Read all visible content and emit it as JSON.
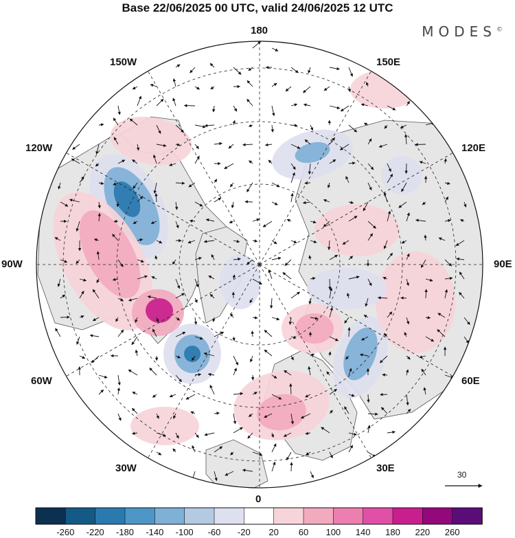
{
  "header": {
    "title": "Base 22/06/2025 00 UTC, valid 24/06/2025 12 UTC",
    "brand": "MODES",
    "brand_mark": "©"
  },
  "map": {
    "projection": "north-polar-stereographic",
    "ocean_color": "#ffffff",
    "land_color": "#e6e6e6",
    "coastline_color": "#555555",
    "grid_style": "dashed"
  },
  "longitude_labels": {
    "lon_180": "180",
    "lon_150E": "150E",
    "lon_120E": "120E",
    "lon_90E": "90E",
    "lon_60E": "60E",
    "lon_30E": "30E",
    "lon_0": "0",
    "lon_30W": "30W",
    "lon_60W": "60W",
    "lon_90W": "90W",
    "lon_120W": "120W",
    "lon_150W": "150W"
  },
  "reference_vector": {
    "label": "30"
  },
  "colorbar": {
    "ticks": [
      "-260",
      "-220",
      "-180",
      "-140",
      "-100",
      "-60",
      "-20",
      "20",
      "60",
      "100",
      "140",
      "180",
      "220",
      "260"
    ],
    "colors": [
      "#0c3050",
      "#145a87",
      "#2a7ab0",
      "#4c97c6",
      "#7fb0d6",
      "#b4cae2",
      "#dedfef",
      "#ffffff",
      "#f7d4d9",
      "#f2aabf",
      "#ec7fb0",
      "#e050a6",
      "#c91f8e",
      "#93087a",
      "#5a0d78"
    ]
  },
  "anomaly_colors": {
    "neg_strong": "#2a7ab0",
    "neg_mid": "#7fb0d6",
    "neg_weak": "#dedfef",
    "pos_weak": "#f7d4d9",
    "pos_mid": "#f2aabf",
    "pos_strong": "#c91f8e"
  }
}
